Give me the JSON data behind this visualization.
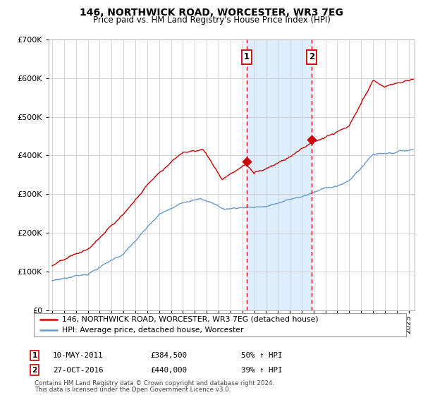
{
  "title": "146, NORTHWICK ROAD, WORCESTER, WR3 7EG",
  "subtitle": "Price paid vs. HM Land Registry's House Price Index (HPI)",
  "legend_line1": "146, NORTHWICK ROAD, WORCESTER, WR3 7EG (detached house)",
  "legend_line2": "HPI: Average price, detached house, Worcester",
  "transaction1_date": "10-MAY-2011",
  "transaction1_price": 384500,
  "transaction1_label": "50% ↑ HPI",
  "transaction2_date": "27-OCT-2016",
  "transaction2_price": 440000,
  "transaction2_label": "39% ↑ HPI",
  "footnote1": "Contains HM Land Registry data © Crown copyright and database right 2024.",
  "footnote2": "This data is licensed under the Open Government Licence v3.0.",
  "hpi_color": "#6699cc",
  "price_color": "#cc0000",
  "background_color": "#ffffff",
  "grid_color": "#cccccc",
  "shading_color": "#ddeeff",
  "ylim_max": 700000,
  "transaction1_x": 2011.37,
  "transaction2_x": 2016.83,
  "xlim_start": 1994.7,
  "xlim_end": 2025.5
}
